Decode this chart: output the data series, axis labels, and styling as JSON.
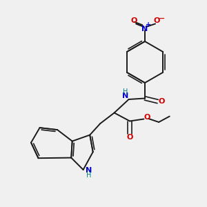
{
  "bg_color": "#f0f0f0",
  "bond_color": "#1a1a1a",
  "nitrogen_color": "#0000cc",
  "oxygen_color": "#cc0000",
  "teal_color": "#008080",
  "figsize": [
    3.0,
    3.0
  ],
  "dpi": 100,
  "xlim": [
    0,
    10
  ],
  "ylim": [
    0,
    10
  ]
}
